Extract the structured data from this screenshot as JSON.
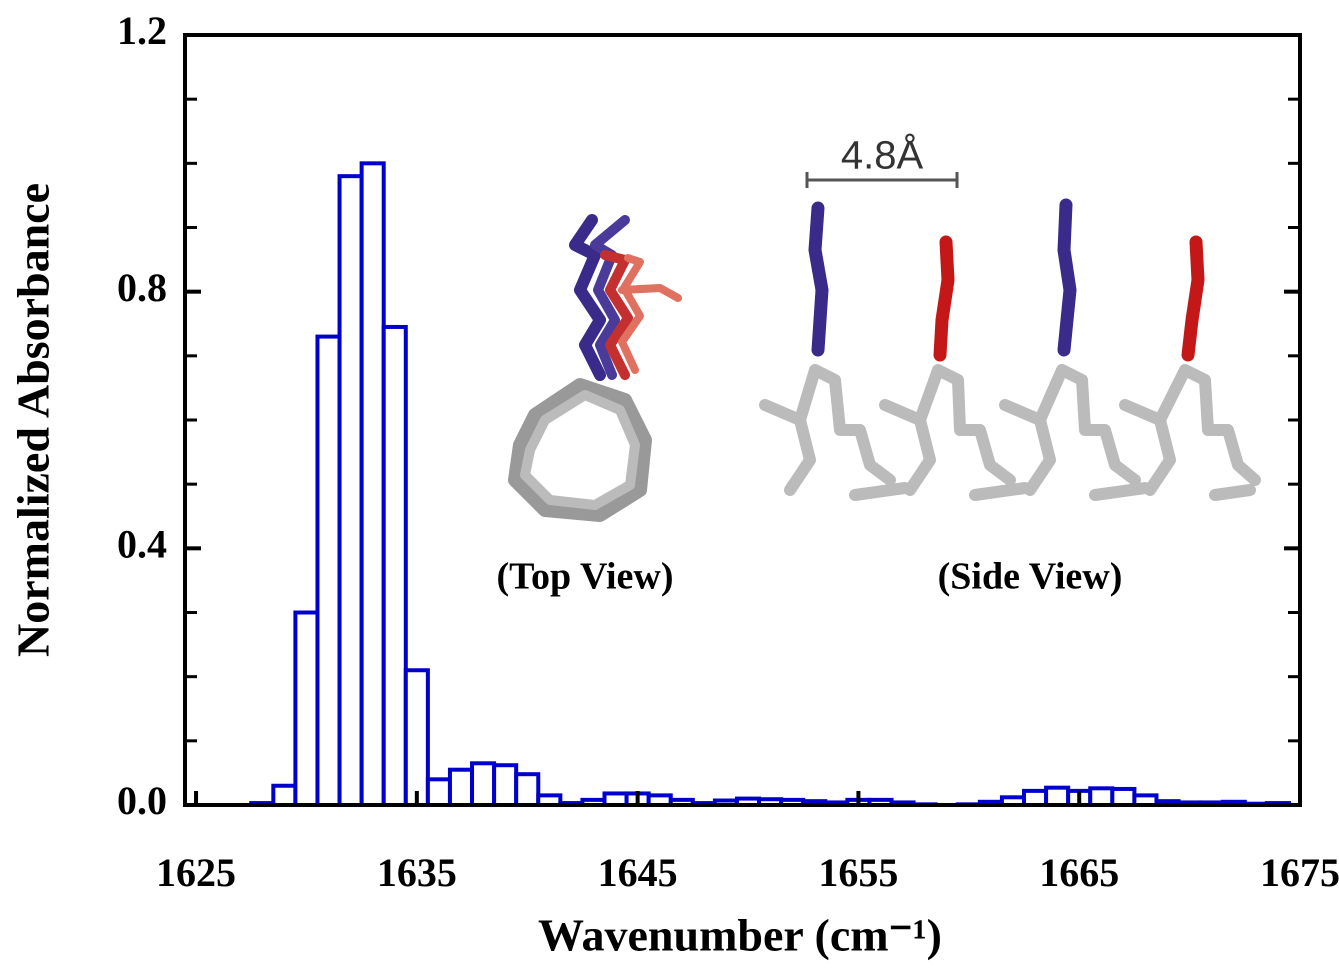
{
  "chart_data": {
    "type": "histogram",
    "x_label": "Wavenumber (cm⁻¹)",
    "y_label": "Normalized Absorbance",
    "annotations": [
      "(Top View)",
      "(Side View)",
      "4.8Å"
    ],
    "color": "#0000cc",
    "bins": [
      1627.5,
      1628.5,
      1629.5,
      1630.5,
      1631.5,
      1632.5,
      1633.5,
      1634.5,
      1635.5,
      1636.5,
      1637.5,
      1638.5,
      1639.5,
      1640.5,
      1641.5,
      1642.5,
      1643.5,
      1644.5,
      1645.5,
      1646.5,
      1647.5,
      1648.5,
      1649.5,
      1650.5,
      1651.5,
      1652.5,
      1653.5,
      1654.5,
      1655.5,
      1656.5,
      1657.5,
      1658.5,
      1659.5,
      1660.5,
      1661.5,
      1662.5,
      1663.5,
      1664.5,
      1665.5,
      1666.5,
      1667.5,
      1668.5,
      1669.5,
      1670.5,
      1671.5,
      1672.5,
      1673.5,
      1674.5
    ],
    "values": [
      0.003,
      0.03,
      0.3,
      0.73,
      0.98,
      1.0,
      0.745,
      0.21,
      0.04,
      0.055,
      0.065,
      0.062,
      0.048,
      0.015,
      0.003,
      0.008,
      0.018,
      0.018,
      0.015,
      0.008,
      0.003,
      0.007,
      0.01,
      0.009,
      0.008,
      0.006,
      0.004,
      0.008,
      0.008,
      0.004,
      0.001,
      0,
      0.001,
      0.005,
      0.012,
      0.022,
      0.027,
      0.022,
      0.026,
      0.025,
      0.015,
      0.006,
      0.004,
      0.004,
      0.005,
      0.002,
      0.003
    ],
    "xlim": [
      1624.5,
      1675
    ],
    "xticks": [
      1625,
      1635,
      1645,
      1655,
      1665,
      1675
    ],
    "ylim": [
      0,
      1.2
    ],
    "yticks": [
      {
        "value": 0,
        "label": "0.0"
      },
      0.4,
      0.8,
      1.2
    ]
  }
}
